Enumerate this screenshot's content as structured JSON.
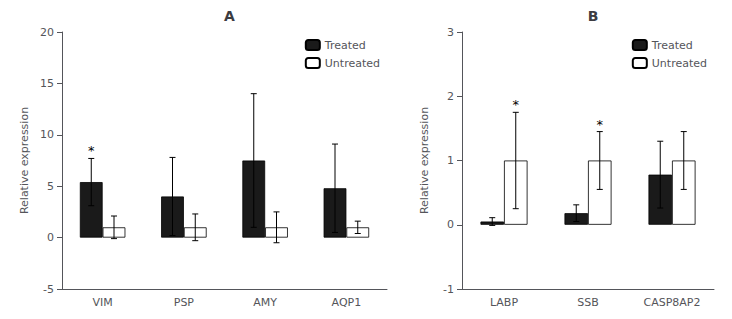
{
  "chart_data": [
    {
      "type": "bar",
      "title": "A",
      "categories": [
        "VIM",
        "PSP",
        "AMY",
        "AQP1"
      ],
      "series": [
        {
          "name": "Treated",
          "color": "#1a1a1a",
          "values": [
            5.4,
            4.0,
            7.5,
            4.8
          ],
          "errors": [
            2.3,
            3.8,
            6.5,
            4.3
          ]
        },
        {
          "name": "Untreated",
          "color": "#ffffff",
          "values": [
            1.0,
            1.0,
            1.0,
            1.0
          ],
          "errors": [
            1.1,
            1.3,
            1.5,
            0.6
          ]
        }
      ],
      "ylabel": "Relative expression",
      "ylim": [
        -5,
        20
      ],
      "yticks": [
        -5,
        0,
        5,
        10,
        15,
        20
      ],
      "annotations": [
        {
          "text": "*",
          "x": "VIM",
          "series": "Treated"
        }
      ],
      "legend": "upper right",
      "grid": false
    },
    {
      "type": "bar",
      "title": "B",
      "categories": [
        "LABP",
        "SSB",
        "CASP8AP2"
      ],
      "series": [
        {
          "name": "Treated",
          "color": "#1a1a1a",
          "values": [
            0.05,
            0.18,
            0.78
          ],
          "errors": [
            0.06,
            0.13,
            0.52
          ]
        },
        {
          "name": "Untreated",
          "color": "#ffffff",
          "values": [
            1.0,
            1.0,
            1.0
          ],
          "errors": [
            0.75,
            0.45,
            0.45
          ]
        }
      ],
      "ylabel": "Relative expression",
      "ylim": [
        -1,
        3
      ],
      "yticks": [
        -1,
        0,
        1,
        2,
        3
      ],
      "annotations": [
        {
          "text": "*",
          "x": "LABP",
          "series": "Untreated"
        },
        {
          "text": "*",
          "x": "SSB",
          "series": "Untreated"
        }
      ],
      "legend": "upper right",
      "grid": false
    }
  ]
}
